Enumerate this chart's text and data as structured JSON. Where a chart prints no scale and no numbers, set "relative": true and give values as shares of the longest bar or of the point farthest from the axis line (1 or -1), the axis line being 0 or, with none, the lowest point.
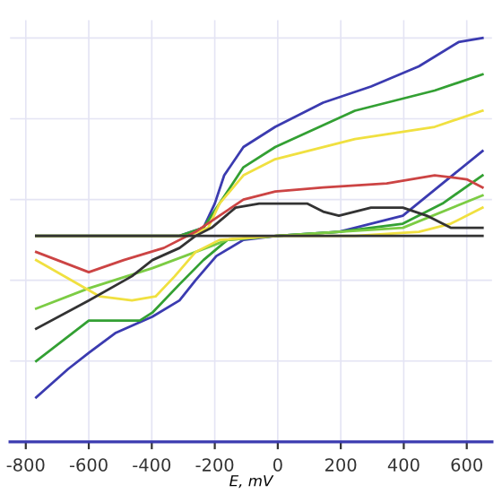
{
  "chart_data": {
    "type": "line",
    "relative": true,
    "xlabel": "E, mV",
    "xlim": [
      -850,
      680
    ],
    "xticks": [
      -800,
      -600,
      -400,
      -200,
      0,
      200,
      400,
      600
    ],
    "grid": true,
    "tick_labels": "x",
    "line_style": "solid",
    "marker": "none",
    "series": [
      {
        "color": "#3b3bb0",
        "x": [
          -767,
          -666,
          -600,
          -514,
          -398,
          -312,
          -261,
          -195,
          -109,
          -3,
          194,
          397,
          523,
          650
        ],
        "values": [
          0.11,
          0.18,
          0.22,
          0.27,
          0.31,
          0.35,
          0.4,
          0.46,
          0.5,
          0.51,
          0.52,
          0.56,
          0.64,
          0.72
        ]
      },
      {
        "color": "#3b3bb0",
        "x": [
          650,
          574,
          448,
          296,
          144,
          -8,
          -109,
          -170,
          -200,
          -236,
          -312,
          -767
        ],
        "values": [
          1.0,
          0.99,
          0.93,
          0.88,
          0.84,
          0.78,
          0.73,
          0.66,
          0.59,
          0.53,
          0.51,
          0.51
        ]
      },
      {
        "color": "#33a033",
        "x": [
          -767,
          -600,
          -438,
          -398,
          -312,
          -236,
          -160,
          -3,
          194,
          397,
          523,
          650
        ],
        "values": [
          0.2,
          0.3,
          0.3,
          0.32,
          0.39,
          0.45,
          0.5,
          0.51,
          0.52,
          0.54,
          0.59,
          0.66
        ]
      },
      {
        "color": "#33a033",
        "x": [
          650,
          498,
          245,
          -8,
          -109,
          -185,
          -236,
          -312,
          -767
        ],
        "values": [
          0.91,
          0.87,
          0.82,
          0.73,
          0.68,
          0.59,
          0.53,
          0.51,
          0.51
        ]
      },
      {
        "color": "#7ccc44",
        "x": [
          -767,
          -600,
          -398,
          -261,
          -160,
          -3,
          194,
          397,
          650
        ],
        "values": [
          0.33,
          0.38,
          0.43,
          0.47,
          0.5,
          0.51,
          0.52,
          0.53,
          0.61
        ]
      },
      {
        "color": "#f0e040",
        "x": [
          -767,
          -565,
          -463,
          -388,
          -327,
          -261,
          -185,
          -3,
          245,
          448,
          549,
          650
        ],
        "values": [
          0.45,
          0.36,
          0.35,
          0.36,
          0.41,
          0.47,
          0.5,
          0.51,
          0.51,
          0.52,
          0.54,
          0.58
        ]
      },
      {
        "color": "#f0e040",
        "x": [
          650,
          498,
          245,
          -8,
          -109,
          -185,
          -221,
          -286,
          -767
        ],
        "values": [
          0.82,
          0.78,
          0.75,
          0.7,
          0.66,
          0.59,
          0.53,
          0.51,
          0.51
        ]
      },
      {
        "color": "#cc4444",
        "x": [
          -767,
          -600,
          -489,
          -362,
          -261,
          -185,
          -109,
          -8,
          144,
          346,
          498,
          600,
          650
        ],
        "values": [
          0.47,
          0.42,
          0.45,
          0.48,
          0.52,
          0.56,
          0.6,
          0.62,
          0.63,
          0.64,
          0.66,
          0.65,
          0.63
        ]
      },
      {
        "color": "#333333",
        "x": [
          -767,
          -600,
          -463,
          -398,
          -312,
          -261,
          -210,
          -134,
          -59,
          93,
          144,
          194,
          296,
          397,
          473,
          549,
          650
        ],
        "values": [
          0.28,
          0.35,
          0.41,
          0.45,
          0.48,
          0.51,
          0.53,
          0.58,
          0.59,
          0.59,
          0.57,
          0.56,
          0.58,
          0.58,
          0.56,
          0.53,
          0.53
        ]
      },
      {
        "color": "#333333",
        "x": [
          650,
          -767
        ],
        "values": [
          0.51,
          0.51
        ]
      }
    ]
  }
}
